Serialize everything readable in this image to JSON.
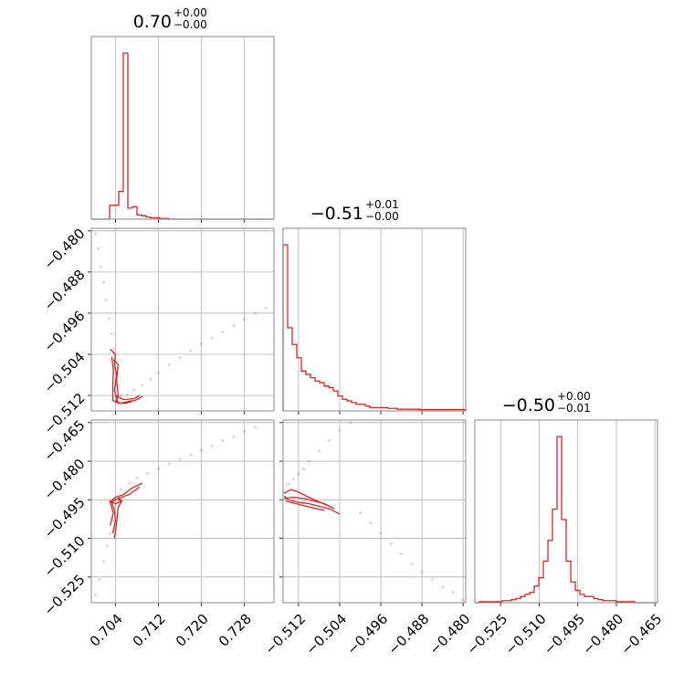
{
  "chart_data": {
    "type": "corner",
    "color": "#d62728",
    "parameters": [
      {
        "title_value": "0.70",
        "title_plus": "+0.00",
        "title_minus": "−0.00",
        "range": [
          0.6995,
          0.7335
        ],
        "ticks": [
          0.704,
          0.712,
          0.72,
          0.728
        ],
        "tick_labels": [
          "0.704",
          "0.712",
          "0.720",
          "0.728"
        ],
        "hist_counts": [
          0,
          0,
          0,
          0,
          1,
          1,
          2,
          12,
          0.8,
          0.9,
          0.3,
          0.25,
          0.15,
          0.1,
          0.1,
          0.05,
          0.05,
          0,
          0,
          0,
          0,
          0,
          0,
          0,
          0,
          0,
          0,
          0,
          0,
          0,
          0,
          0,
          0,
          0,
          0,
          0,
          0,
          0,
          0,
          0
        ],
        "hist_bins_x": [
          0.6995,
          0.70035,
          0.7012,
          0.70205,
          0.7029,
          0.70375,
          0.7046,
          0.70545,
          0.7063,
          0.70715,
          0.708,
          0.70885,
          0.7097,
          0.71055,
          0.7114,
          0.71225,
          0.7131,
          0.71395,
          0.7148,
          0.71565,
          0.7165,
          0.71735,
          0.7182,
          0.71905,
          0.7199,
          0.72075,
          0.7216,
          0.72245,
          0.7233,
          0.72415,
          0.725,
          0.72585,
          0.7267,
          0.72755,
          0.7284,
          0.72925,
          0.7301,
          0.73095,
          0.7318,
          0.73265,
          0.7335
        ]
      },
      {
        "title_value": "−0.51",
        "title_plus": "+0.01",
        "title_minus": "−0.00",
        "range": [
          -0.515,
          -0.4795
        ],
        "ticks": [
          -0.512,
          -0.504,
          -0.496,
          -0.488,
          -0.48
        ],
        "tick_labels": [
          "−0.512",
          "−0.504",
          "−0.496",
          "−0.488",
          "−0.480"
        ],
        "hist_counts": [
          100,
          50,
          40,
          32,
          24,
          22,
          20,
          18,
          17,
          15,
          14,
          12,
          9,
          7,
          6,
          5,
          4,
          4,
          3,
          2,
          2,
          2,
          2,
          1.5,
          1.5,
          1,
          1,
          1,
          1,
          1,
          0.8,
          0.8,
          0.8,
          0.8,
          0.8,
          0.8,
          0.8,
          0.8,
          0.8,
          0.8
        ],
        "ylim": [
          0,
          100
        ]
      },
      {
        "title_value": "−0.50",
        "title_plus": "+0.00",
        "title_minus": "−0.01",
        "range": [
          -0.535,
          -0.464
        ],
        "ticks": [
          -0.525,
          -0.51,
          -0.495,
          -0.48,
          -0.465
        ],
        "tick_labels": [
          "−0.525",
          "−0.510",
          "−0.495",
          "−0.480",
          "−0.465"
        ],
        "hist_counts": [
          0,
          0.5,
          0.5,
          0.5,
          0.5,
          0.5,
          1,
          1,
          1.5,
          2,
          3,
          4,
          5,
          8,
          12,
          20,
          30,
          45,
          80,
          40,
          20,
          10,
          6,
          4,
          3,
          3,
          2,
          1.5,
          1,
          1,
          1,
          0.5,
          0.5,
          0.5,
          0.5,
          0,
          0,
          0,
          0,
          0
        ],
        "ylim": [
          0,
          100
        ]
      }
    ],
    "scatter_2d": [
      {
        "x_param": 0,
        "y_param": 1,
        "points_x": [
          0.7003,
          0.7008,
          0.7013,
          0.7018,
          0.7023,
          0.7028,
          0.7033,
          0.7036,
          0.704,
          0.705,
          0.7062,
          0.7075,
          0.709,
          0.7105,
          0.712,
          0.714,
          0.716,
          0.718,
          0.72,
          0.722,
          0.724,
          0.726,
          0.728,
          0.73,
          0.732
        ],
        "points_y": [
          -0.4805,
          -0.4835,
          -0.487,
          -0.49,
          -0.4935,
          -0.497,
          -0.5,
          -0.503,
          -0.51,
          -0.512,
          -0.5118,
          -0.511,
          -0.51,
          -0.5088,
          -0.5076,
          -0.506,
          -0.5046,
          -0.5033,
          -0.502,
          -0.5008,
          -0.4996,
          -0.4984,
          -0.4972,
          -0.496,
          -0.495
        ],
        "contours": [
          [
            [
              0.703,
              -0.503
            ],
            [
              0.704,
              -0.504
            ],
            [
              0.7038,
              -0.506
            ],
            [
              0.7042,
              -0.508
            ],
            [
              0.7038,
              -0.511
            ],
            [
              0.7045,
              -0.5135
            ],
            [
              0.706,
              -0.5135
            ],
            [
              0.708,
              -0.5128
            ],
            [
              0.709,
              -0.5122
            ]
          ],
          [
            [
              0.7033,
              -0.5045
            ],
            [
              0.7036,
              -0.507
            ],
            [
              0.7035,
              -0.51
            ],
            [
              0.7035,
              -0.513
            ],
            [
              0.705,
              -0.5135
            ],
            [
              0.707,
              -0.513
            ]
          ],
          [
            [
              0.7036,
              -0.505
            ],
            [
              0.7045,
              -0.506
            ],
            [
              0.7042,
              -0.509
            ],
            [
              0.7045,
              -0.512
            ],
            [
              0.704,
              -0.5135
            ]
          ],
          [
            [
              0.704,
              -0.512
            ],
            [
              0.7055,
              -0.5128
            ],
            [
              0.7075,
              -0.5126
            ],
            [
              0.7085,
              -0.512
            ]
          ]
        ]
      },
      {
        "x_param": 0,
        "y_param": 2,
        "points_x": [
          0.7003,
          0.701,
          0.7018,
          0.7025,
          0.703,
          0.7035,
          0.704,
          0.705,
          0.7065,
          0.708,
          0.71,
          0.712,
          0.714,
          0.716,
          0.718,
          0.72,
          0.722,
          0.724,
          0.726,
          0.728,
          0.73
        ],
        "points_y": [
          -0.532,
          -0.526,
          -0.519,
          -0.513,
          -0.508,
          -0.503,
          -0.497,
          -0.491,
          -0.4885,
          -0.4865,
          -0.4848,
          -0.483,
          -0.481,
          -0.4792,
          -0.4775,
          -0.4757,
          -0.474,
          -0.472,
          -0.4705,
          -0.4685,
          -0.4668
        ],
        "contours": [
          [
            [
              0.7035,
              -0.508
            ],
            [
              0.704,
              -0.503
            ],
            [
              0.7038,
              -0.499
            ],
            [
              0.7032,
              -0.4955
            ],
            [
              0.704,
              -0.494
            ],
            [
              0.7055,
              -0.493
            ],
            [
              0.707,
              -0.4905
            ],
            [
              0.709,
              -0.4885
            ]
          ],
          [
            [
              0.703,
              -0.505
            ],
            [
              0.7036,
              -0.5
            ],
            [
              0.703,
              -0.496
            ],
            [
              0.7045,
              -0.4945
            ],
            [
              0.7065,
              -0.493
            ],
            [
              0.7085,
              -0.49
            ]
          ],
          [
            [
              0.7038,
              -0.51
            ],
            [
              0.7042,
              -0.504
            ],
            [
              0.7045,
              -0.498
            ],
            [
              0.705,
              -0.496
            ],
            [
              0.7045,
              -0.4945
            ]
          ],
          [
            [
              0.7028,
              -0.4955
            ],
            [
              0.704,
              -0.4965
            ],
            [
              0.7052,
              -0.4955
            ],
            [
              0.7045,
              -0.494
            ]
          ]
        ]
      },
      {
        "x_param": 1,
        "y_param": 2,
        "points_x": [
          -0.5148,
          -0.514,
          -0.513,
          -0.512,
          -0.511,
          -0.51,
          -0.508,
          -0.506,
          -0.504,
          -0.502,
          -0.5,
          -0.498,
          -0.496,
          -0.494,
          -0.492,
          -0.49,
          -0.488,
          -0.486,
          -0.484,
          -0.482,
          -0.48
        ],
        "points_y": [
          -0.492,
          -0.489,
          -0.487,
          -0.485,
          -0.483,
          -0.48,
          -0.476,
          -0.472,
          -0.468,
          -0.465,
          -0.5,
          -0.504,
          -0.508,
          -0.512,
          -0.516,
          -0.52,
          -0.523,
          -0.526,
          -0.529,
          -0.531,
          -0.534
        ],
        "contours": [
          [
            [
              -0.5148,
              -0.4935
            ],
            [
              -0.514,
              -0.495
            ],
            [
              -0.512,
              -0.496
            ],
            [
              -0.51,
              -0.4965
            ],
            [
              -0.508,
              -0.4975
            ],
            [
              -0.506,
              -0.4985
            ],
            [
              -0.504,
              -0.5005
            ]
          ],
          [
            [
              -0.5148,
              -0.4945
            ],
            [
              -0.513,
              -0.494
            ],
            [
              -0.511,
              -0.4945
            ],
            [
              -0.509,
              -0.4955
            ],
            [
              -0.507,
              -0.4965
            ],
            [
              -0.505,
              -0.4985
            ]
          ],
          [
            [
              -0.5148,
              -0.4925
            ],
            [
              -0.5135,
              -0.491
            ],
            [
              -0.512,
              -0.492
            ],
            [
              -0.51,
              -0.494
            ],
            [
              -0.508,
              -0.4958
            ],
            [
              -0.506,
              -0.4975
            ]
          ],
          [
            [
              -0.5145,
              -0.4955
            ],
            [
              -0.5125,
              -0.4965
            ],
            [
              -0.5105,
              -0.4975
            ],
            [
              -0.5085,
              -0.4985
            ],
            [
              -0.507,
              -0.499
            ]
          ]
        ]
      }
    ]
  }
}
